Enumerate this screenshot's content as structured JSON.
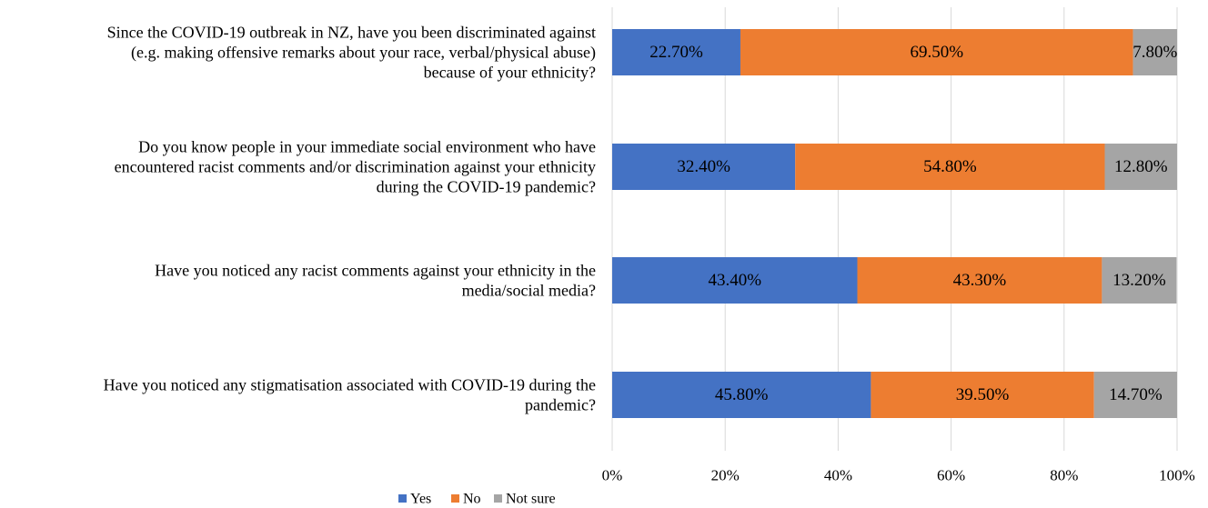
{
  "chart_data": {
    "type": "bar",
    "stacked": true,
    "orientation": "horizontal",
    "categories": [
      [
        "Since the COVID-19 outbreak in NZ, have you been discriminated against",
        "(e.g. making offensive remarks about your race, verbal/physical abuse)",
        "because of your ethnicity?"
      ],
      [
        "Do you know people in your immediate social environment who have",
        "encountered racist comments and/or discrimination against your ethnicity",
        "during the COVID-19 pandemic?"
      ],
      [
        "Have you noticed any racist comments against your ethnicity in the",
        "media/social media?"
      ],
      [
        "Have you noticed any stigmatisation associated with COVID-19 during the",
        "pandemic?"
      ]
    ],
    "series": [
      {
        "name": "Yes",
        "color": "#4472c4",
        "values": [
          22.7,
          32.4,
          43.4,
          45.8
        ],
        "labels": [
          "22.70%",
          "32.40%",
          "43.40%",
          "45.80%"
        ]
      },
      {
        "name": "No",
        "color": "#ed7d31",
        "values": [
          69.5,
          54.8,
          43.3,
          39.5
        ],
        "labels": [
          "69.50%",
          "54.80%",
          "43.30%",
          "39.50%"
        ]
      },
      {
        "name": "Not sure",
        "color": "#a5a5a5",
        "values": [
          7.8,
          12.8,
          13.2,
          14.7
        ],
        "labels": [
          "7.80%",
          "12.80%",
          "13.20%",
          "14.70%"
        ]
      }
    ],
    "xlim": [
      0,
      100
    ],
    "xticks": [
      0,
      20,
      40,
      60,
      80,
      100
    ],
    "xtick_labels": [
      "0%",
      "20%",
      "40%",
      "60%",
      "80%",
      "100%"
    ],
    "grid": true,
    "legend": "bottom-center"
  }
}
